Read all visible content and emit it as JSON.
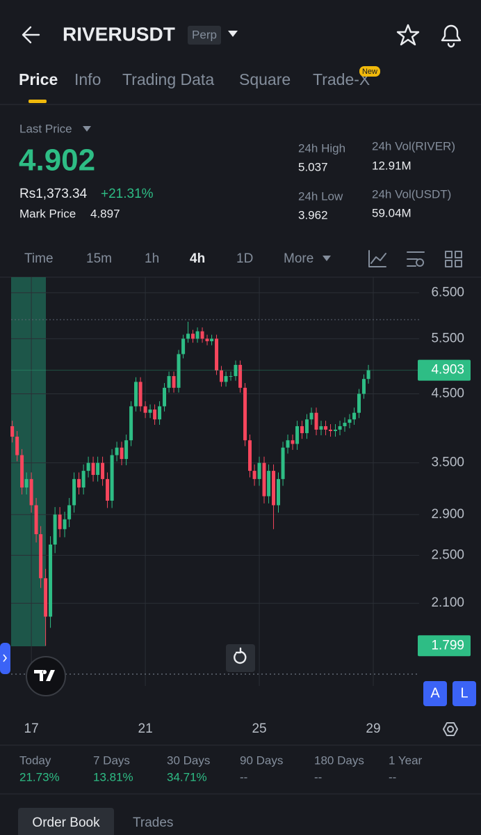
{
  "header": {
    "symbol": "RIVERUSDT",
    "badge": "Perp"
  },
  "tabs": {
    "items": [
      "Price",
      "Info",
      "Trading Data",
      "Square",
      "Trade-X"
    ],
    "new_badge": "New"
  },
  "stats": {
    "last_price_label": "Last Price",
    "last_price": "4.902",
    "fiat_price": "Rs1,373.34",
    "change": "+21.31%",
    "mark_price_label": "Mark Price",
    "mark_price": "4.897",
    "high_label": "24h High",
    "high": "5.037",
    "low_label": "24h Low",
    "low": "3.962",
    "vol_base_label": "24h Vol(RIVER)",
    "vol_base": "12.91M",
    "vol_quote_label": "24h Vol(USDT)",
    "vol_quote": "59.04M"
  },
  "intervals": [
    "Time",
    "15m",
    "1h",
    "4h",
    "1D",
    "More"
  ],
  "chart_data": {
    "type": "candlestick",
    "log_scale": true,
    "grid": true,
    "up_color": "#2ebd85",
    "down_color": "#f6465d",
    "x": [
      16.33,
      16.5,
      16.67,
      16.83,
      17,
      17.17,
      17.33,
      17.5,
      17.67,
      17.83,
      18,
      18.17,
      18.33,
      18.5,
      18.67,
      18.83,
      19,
      19.17,
      19.33,
      19.5,
      19.67,
      19.83,
      20,
      20.17,
      20.33,
      20.5,
      20.67,
      20.83,
      21,
      21.17,
      21.33,
      21.5,
      21.67,
      21.83,
      22,
      22.17,
      22.33,
      22.5,
      22.67,
      22.83,
      23,
      23.17,
      23.33,
      23.5,
      23.67,
      23.83,
      24,
      24.17,
      24.33,
      24.5,
      24.67,
      24.83,
      25,
      25.17,
      25.33,
      25.5,
      25.67,
      25.83,
      26,
      26.17,
      26.33,
      26.5,
      26.67,
      26.83,
      27,
      27.17,
      27.33,
      27.5,
      27.67,
      27.83,
      28,
      28.17,
      28.33,
      28.5,
      28.67,
      28.83
    ],
    "open": [
      4.0,
      3.85,
      3.6,
      3.2,
      3.3,
      3.0,
      2.7,
      2.3,
      2.0,
      2.6,
      2.9,
      2.75,
      2.85,
      3.0,
      3.3,
      3.2,
      3.4,
      3.5,
      3.35,
      3.5,
      3.3,
      3.05,
      3.6,
      3.7,
      3.55,
      3.8,
      4.3,
      4.7,
      4.3,
      4.2,
      4.25,
      4.1,
      4.3,
      4.6,
      4.8,
      4.6,
      5.2,
      5.5,
      5.6,
      5.5,
      5.65,
      5.5,
      5.45,
      5.5,
      4.9,
      4.7,
      4.8,
      4.8,
      5.0,
      4.6,
      3.8,
      3.4,
      3.3,
      3.5,
      3.1,
      3.4,
      3.0,
      3.3,
      3.7,
      3.8,
      3.75,
      4.0,
      3.9,
      4.1,
      4.2,
      3.95,
      4.0,
      3.95,
      3.93,
      3.95,
      4.0,
      4.05,
      4.1,
      4.2,
      4.5,
      4.75
    ],
    "high": [
      4.08,
      3.93,
      3.68,
      3.38,
      3.38,
      3.08,
      2.78,
      2.38,
      2.68,
      2.98,
      2.98,
      2.93,
      3.08,
      3.38,
      3.38,
      3.48,
      3.58,
      3.58,
      3.58,
      3.58,
      3.38,
      3.68,
      3.78,
      3.78,
      3.88,
      4.38,
      4.78,
      4.78,
      4.38,
      4.33,
      4.33,
      4.38,
      4.68,
      4.88,
      4.88,
      5.28,
      5.58,
      5.85,
      5.68,
      5.73,
      5.73,
      5.58,
      5.58,
      5.58,
      4.98,
      4.88,
      4.88,
      5.08,
      5.08,
      4.68,
      3.88,
      3.48,
      3.58,
      3.58,
      3.48,
      3.48,
      3.38,
      3.78,
      3.88,
      3.88,
      4.08,
      4.08,
      4.18,
      4.28,
      4.28,
      4.08,
      4.08,
      4.03,
      4.03,
      4.08,
      4.13,
      4.18,
      4.28,
      4.58,
      4.83,
      5.0
    ],
    "low": [
      3.77,
      3.52,
      3.12,
      3.12,
      2.92,
      2.62,
      2.22,
      1.799,
      1.92,
      2.52,
      2.67,
      2.67,
      2.77,
      2.92,
      3.12,
      3.12,
      3.32,
      3.27,
      3.27,
      3.22,
      2.97,
      2.97,
      3.52,
      3.47,
      3.47,
      3.72,
      4.22,
      4.22,
      4.12,
      4.12,
      4.02,
      4.02,
      4.22,
      4.52,
      4.52,
      4.52,
      5.12,
      5.42,
      5.42,
      5.42,
      5.42,
      5.37,
      5.37,
      4.82,
      4.62,
      4.62,
      4.72,
      4.72,
      4.52,
      3.72,
      3.32,
      3.22,
      3.22,
      3.02,
      3.02,
      2.75,
      2.92,
      3.22,
      3.62,
      3.67,
      3.67,
      3.82,
      3.82,
      4.02,
      3.87,
      3.87,
      3.87,
      3.85,
      3.85,
      3.87,
      3.92,
      3.97,
      4.02,
      4.12,
      4.42,
      4.67
    ],
    "close": [
      3.85,
      3.6,
      3.2,
      3.3,
      3.0,
      2.7,
      2.3,
      2.0,
      2.6,
      2.9,
      2.75,
      2.85,
      3.0,
      3.3,
      3.2,
      3.4,
      3.5,
      3.35,
      3.5,
      3.3,
      3.05,
      3.6,
      3.7,
      3.55,
      3.8,
      4.3,
      4.7,
      4.3,
      4.2,
      4.25,
      4.1,
      4.3,
      4.6,
      4.8,
      4.6,
      5.2,
      5.5,
      5.6,
      5.5,
      5.65,
      5.5,
      5.45,
      5.5,
      4.9,
      4.7,
      4.8,
      4.8,
      5.0,
      4.6,
      3.8,
      3.4,
      3.3,
      3.5,
      3.1,
      3.4,
      3.0,
      3.3,
      3.7,
      3.8,
      3.75,
      4.0,
      3.9,
      4.1,
      4.2,
      3.95,
      4.0,
      3.95,
      3.93,
      3.95,
      4.0,
      4.05,
      4.1,
      4.2,
      4.5,
      4.75,
      4.903
    ],
    "xlim": [
      16.29,
      30.61
    ],
    "xticks": [
      17,
      21,
      25,
      29
    ],
    "ylim": [
      1.554,
      6.88
    ],
    "yticks": [
      {
        "value": 2.1,
        "label": "2.100"
      },
      {
        "value": 2.5,
        "label": "2.500"
      },
      {
        "value": 2.9,
        "label": "2.900"
      },
      {
        "value": 3.5,
        "label": "3.500"
      },
      {
        "value": 4.5,
        "label": "4.500"
      },
      {
        "value": 5.5,
        "label": "5.500"
      },
      {
        "value": 6.5,
        "label": "6.500"
      }
    ],
    "last_price_marker": 4.903,
    "low_marker": 1.799
  },
  "performance": [
    {
      "label": "Today",
      "value": "21.73%"
    },
    {
      "label": "7 Days",
      "value": "13.81%"
    },
    {
      "label": "30 Days",
      "value": "34.71%"
    },
    {
      "label": "90 Days",
      "value": "--"
    },
    {
      "label": "180 Days",
      "value": "--"
    },
    {
      "label": "1 Year",
      "value": "--"
    }
  ],
  "bottom_tabs": [
    "Order Book",
    "Trades"
  ]
}
